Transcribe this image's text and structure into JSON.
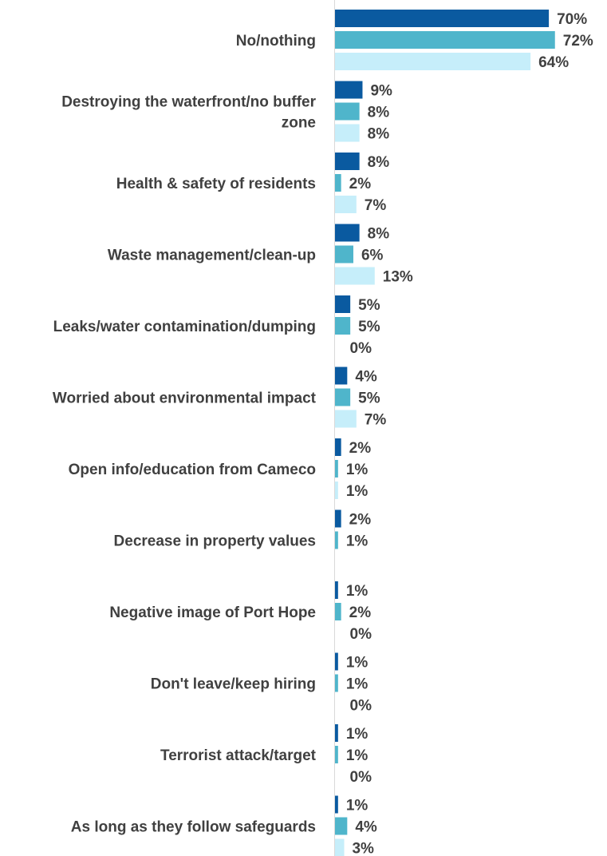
{
  "chart_data": {
    "type": "bar",
    "orientation": "horizontal",
    "categories": [
      "No/nothing",
      "Destroying the waterfront/no buffer zone",
      "Health & safety of residents",
      "Waste management/clean-up",
      "Leaks/water contamination/dumping",
      "Worried about environmental impact",
      "Open info/education from Cameco",
      "Decrease in property values",
      "Negative image of Port Hope",
      "Don't leave/keep hiring",
      "Terrorist attack/target",
      "As long as they follow safeguards"
    ],
    "series": [
      {
        "color": "#0a5aa0",
        "values": [
          70,
          9,
          8,
          8,
          5,
          4,
          2,
          2,
          1,
          1,
          1,
          1
        ],
        "labels": [
          "70%",
          "9%",
          "8%",
          "8%",
          "5%",
          "4%",
          "2%",
          "2%",
          "1%",
          "1%",
          "1%",
          "1%"
        ]
      },
      {
        "color": "#4fb5cb",
        "values": [
          72,
          8,
          2,
          6,
          5,
          5,
          1,
          1,
          2,
          1,
          1,
          4
        ],
        "labels": [
          "72%",
          "8%",
          "2%",
          "6%",
          "5%",
          "5%",
          "1%",
          "1%",
          "2%",
          "1%",
          "1%",
          "4%"
        ]
      },
      {
        "color": "#c6eefa",
        "values": [
          64,
          8,
          7,
          13,
          0,
          7,
          1,
          null,
          0,
          0,
          0,
          3
        ],
        "labels": [
          "64%",
          "8%",
          "7%",
          "13%",
          "0%",
          "7%",
          "1%",
          "",
          "0%",
          "0%",
          "0%",
          "3%"
        ]
      }
    ],
    "category_label_lines": [
      [
        "No/nothing"
      ],
      [
        "Destroying the waterfront/no buffer",
        "zone"
      ],
      [
        "Health & safety of residents"
      ],
      [
        "Waste management/clean-up"
      ],
      [
        "Leaks/water contamination/dumping"
      ],
      [
        "Worried about environmental impact"
      ],
      [
        "Open info/education from Cameco"
      ],
      [
        "Decrease in property values"
      ],
      [
        "Negative image of Port Hope"
      ],
      [
        "Don't leave/keep hiring"
      ],
      [
        "Terrorist attack/target"
      ],
      [
        "As long as they follow safeguards"
      ]
    ],
    "xlim": [
      0,
      100
    ],
    "grid": false,
    "axis_color": "#d9d9d9",
    "legend": "none"
  }
}
